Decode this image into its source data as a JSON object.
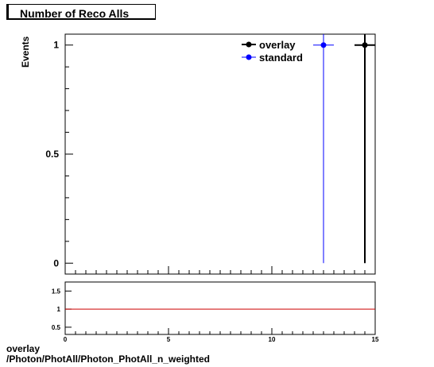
{
  "header": {
    "title": "Number of Reco Alls"
  },
  "footer": {
    "line1": "overlay",
    "line2": "/Photon/PhotAll/Photon_PhotAll_n_weighted"
  },
  "chart_data": [
    {
      "type": "scatter",
      "ylabel": "Events",
      "xlim": [
        0,
        15
      ],
      "ylim": [
        -0.05,
        1.05
      ],
      "y_ticks": [
        0,
        0.5,
        1
      ],
      "y_tick_labels": [
        "0",
        "0.5",
        "1"
      ],
      "legend_position": "top-right",
      "grid": false,
      "series": [
        {
          "name": "overlay",
          "color": "#000000",
          "points": [
            {
              "x": 14.5,
              "y": 1,
              "xerr": 0.5,
              "ylow": 0,
              "yhigh": 1.05
            }
          ]
        },
        {
          "name": "standard",
          "color": "#0000ff",
          "points": [
            {
              "x": 12.5,
              "y": 1,
              "xerr": 0.5,
              "ylow": 0,
              "yhigh": 1.05
            }
          ]
        }
      ]
    },
    {
      "type": "line",
      "xlim": [
        0,
        15
      ],
      "ylim": [
        0.3,
        1.75
      ],
      "x_ticks": [
        0,
        5,
        10,
        15
      ],
      "x_tick_labels": [
        "0",
        "5",
        "10",
        "15"
      ],
      "y_ticks": [
        0.5,
        1,
        1.5
      ],
      "y_tick_labels": [
        "0.5",
        "1",
        "1.5"
      ],
      "reference_line": {
        "y": 1,
        "color": "#cc0000"
      },
      "grid": false
    }
  ]
}
